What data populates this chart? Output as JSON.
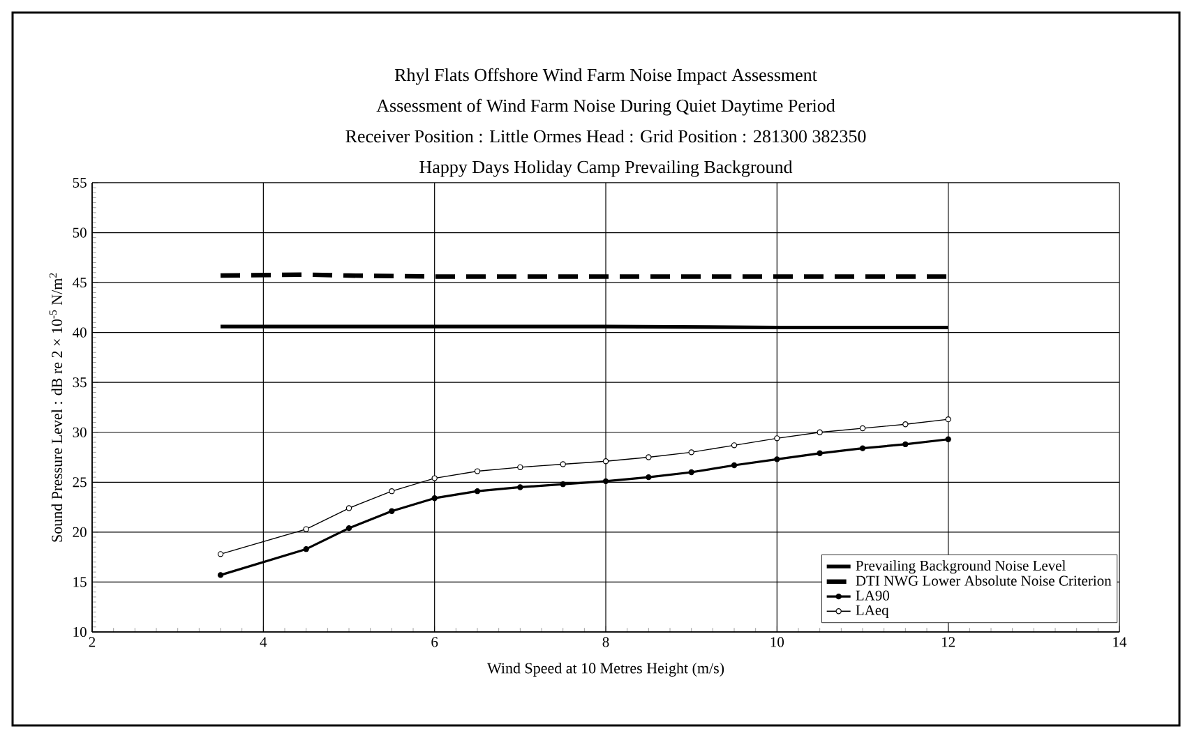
{
  "chart_data": {
    "type": "line",
    "title": "Rhyl Flats Offshore Wind Farm Noise Impact Assessment",
    "subtitle": "Assessment of Wind Farm Noise During Quiet Daytime Period",
    "annotations": [
      "Receiver Position : Little Ormes Head : Grid Position : 281300 382350",
      "Happy Days Holiday Camp Prevailing Background"
    ],
    "xlabel": "Wind Speed at 10 Metres Height (m/s)",
    "ylabel": "Sound Pressure Level : dB re 2 × 10$^{-5}$ N/m$^{2}$",
    "xlim": [
      2,
      14
    ],
    "xticks": [
      2,
      4,
      6,
      8,
      10,
      12,
      14
    ],
    "ylim": [
      10,
      55
    ],
    "yticks": [
      10,
      15,
      20,
      25,
      30,
      35,
      40,
      45,
      50,
      55
    ],
    "grid": true,
    "legend": "bottom right",
    "series": [
      {
        "name": "Prevailing Background Noise Level",
        "color": "#000000",
        "line_style": "solid",
        "marker": "none",
        "x": [
          3.5,
          6,
          8,
          10,
          12
        ],
        "values": [
          40.6,
          40.6,
          40.6,
          40.5,
          40.5
        ]
      },
      {
        "name": "DTI NWG Lower Absolute Noise Criterion",
        "color": "#000000",
        "line_style": "dashed",
        "marker": "none",
        "x": [
          3.5,
          4.5,
          5,
          6,
          8,
          10,
          12
        ],
        "values": [
          45.7,
          45.8,
          45.7,
          45.6,
          45.6,
          45.6,
          45.6
        ]
      },
      {
        "name": "LA90",
        "color": "#000000",
        "line_style": "solid",
        "marker": "circle",
        "x": [
          3.5,
          4.5,
          5,
          5.5,
          6,
          6.5,
          7,
          7.5,
          8,
          8.5,
          9,
          9.5,
          10,
          10.5,
          11,
          11.5,
          12
        ],
        "values": [
          15.7,
          18.3,
          20.4,
          22.1,
          23.4,
          24.1,
          24.5,
          24.8,
          25.1,
          25.5,
          26.0,
          26.7,
          27.3,
          27.9,
          28.4,
          28.8,
          29.3
        ]
      },
      {
        "name": "LAeq",
        "color": "#000000",
        "line_style": "solid",
        "marker": "circle",
        "x": [
          3.5,
          4.5,
          5,
          5.5,
          6,
          6.5,
          7,
          7.5,
          8,
          8.5,
          9,
          9.5,
          10,
          10.5,
          11,
          11.5,
          12
        ],
        "values": [
          17.8,
          20.3,
          22.4,
          24.1,
          25.4,
          26.1,
          26.5,
          26.8,
          27.1,
          27.5,
          28.0,
          28.7,
          29.4,
          30.0,
          30.4,
          30.8,
          31.3
        ]
      }
    ]
  }
}
